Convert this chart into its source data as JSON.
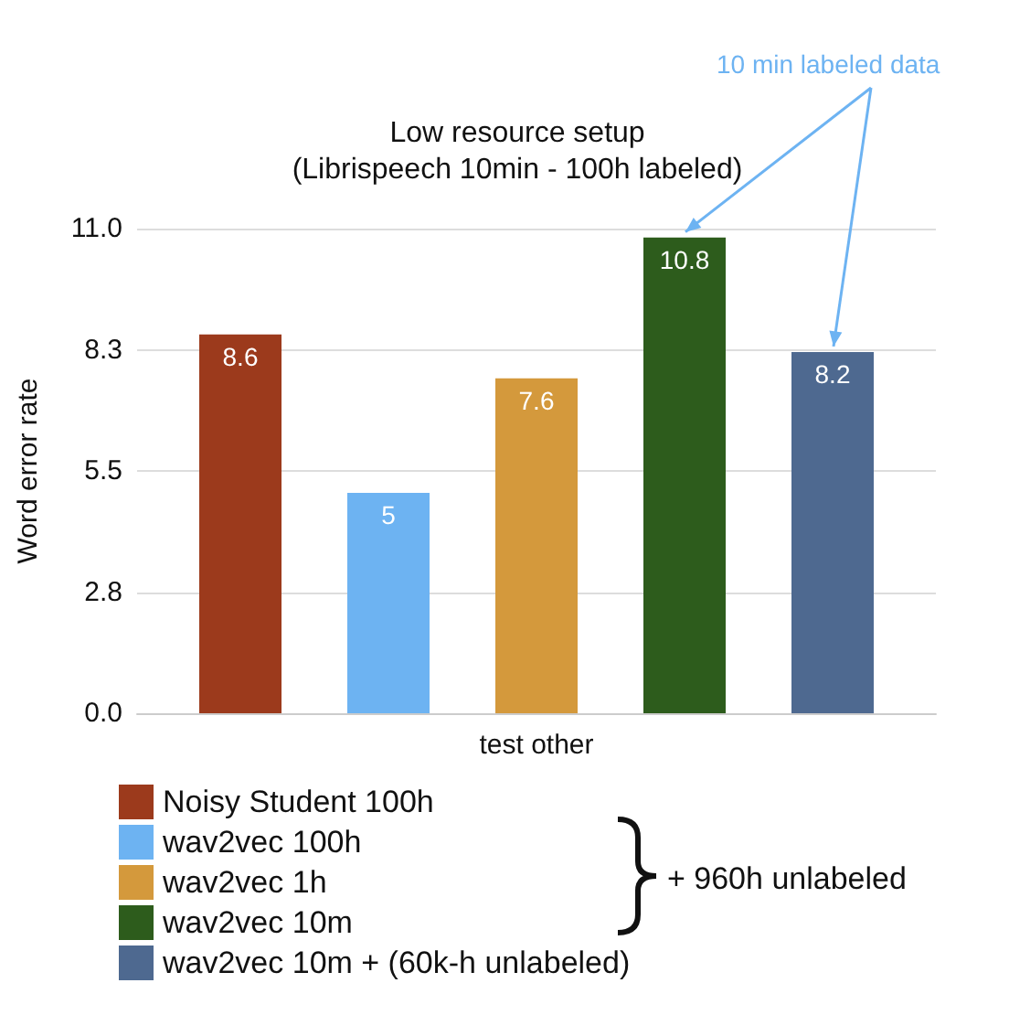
{
  "chart_data": {
    "type": "bar",
    "title": "Low resource setup",
    "subtitle": "(Librispeech 10min - 100h labeled)",
    "ylabel": "Word error rate",
    "categories": [
      "test other"
    ],
    "series": [
      {
        "name": "Noisy Student 100h",
        "color": "#9c3a1c",
        "values": [
          8.6
        ]
      },
      {
        "name": "wav2vec 100h",
        "color": "#6db3f2",
        "values": [
          5
        ]
      },
      {
        "name": "wav2vec 1h",
        "color": "#d4993c",
        "values": [
          7.6
        ]
      },
      {
        "name": "wav2vec 10m",
        "color": "#2d5c1c",
        "values": [
          10.8
        ]
      },
      {
        "name": "wav2vec 10m + (60k-h unlabeled)",
        "color": "#4e6990",
        "values": [
          8.2
        ]
      }
    ],
    "ylim": [
      0,
      11
    ],
    "yticks": [
      {
        "value": 0,
        "label": "0.0"
      },
      {
        "value": 2.75,
        "label": "2.8"
      },
      5.5,
      {
        "value": 8.25,
        "label": "8.3"
      },
      {
        "value": 11,
        "label": "11.0"
      }
    ],
    "grid": "y",
    "legend": "bottom",
    "data_labels": true,
    "annotations": [
      "10 min labeled data",
      "+ 960h unlabeled"
    ]
  }
}
